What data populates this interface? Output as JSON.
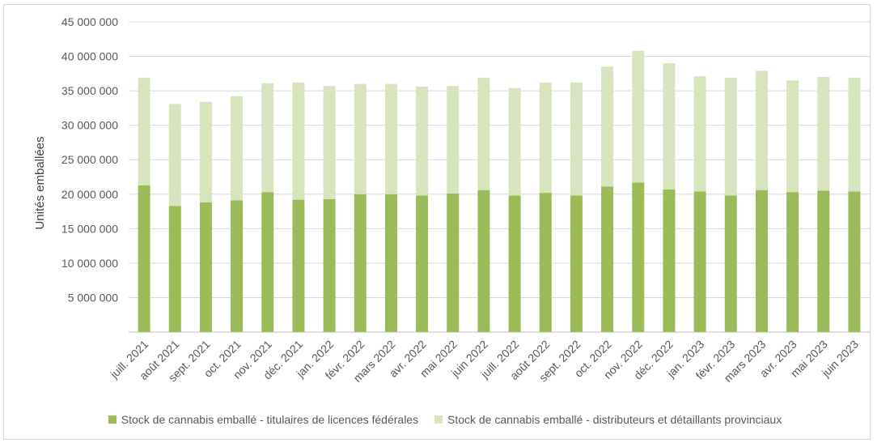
{
  "chart_data": {
    "type": "bar",
    "stacked": true,
    "title": "",
    "xlabel": "",
    "ylabel": "Unités emballées",
    "ylim": [
      0,
      45000000
    ],
    "yticks": [
      "",
      "5 000 000",
      "10 000 000",
      "15 000 000",
      "20 000 000",
      "25 000 000",
      "30 000 000",
      "35 000 000",
      "40 000 000",
      "45 000 000"
    ],
    "grid": true,
    "legend_position": "bottom",
    "categories": [
      "juill. 2021",
      "août 2021",
      "sept. 2021",
      "oct. 2021",
      "nov. 2021",
      "déc. 2021",
      "jan. 2022",
      "févr. 2022",
      "mars 2022",
      "avr. 2022",
      "mai 2022",
      "juin 2022",
      "juill. 2022",
      "août 2022",
      "sept. 2022",
      "oct. 2022",
      "nov. 2022",
      "déc. 2022",
      "jan. 2023",
      "févr. 2023",
      "mars 2023",
      "avr. 2023",
      "mai 2023",
      "juin 2023"
    ],
    "series": [
      {
        "name": "Stock de cannabis emballé - titulaires de licences fédérales",
        "color": "#9bbb59",
        "values": [
          21300000,
          18300000,
          18800000,
          19100000,
          20300000,
          19200000,
          19300000,
          20000000,
          20000000,
          19800000,
          20100000,
          20600000,
          19800000,
          20200000,
          19800000,
          21100000,
          21700000,
          20700000,
          20400000,
          19800000,
          20600000,
          20300000,
          20500000,
          20400000
        ]
      },
      {
        "name": "Stock de cannabis emballé - distributeurs et détaillants provinciaux",
        "color": "#d7e4bd",
        "values": [
          15600000,
          14800000,
          14600000,
          15100000,
          15800000,
          17000000,
          16400000,
          16000000,
          16000000,
          15800000,
          15600000,
          16300000,
          15600000,
          16000000,
          16400000,
          17400000,
          19100000,
          18300000,
          16700000,
          17100000,
          17300000,
          16200000,
          16500000,
          16500000
        ]
      }
    ]
  }
}
